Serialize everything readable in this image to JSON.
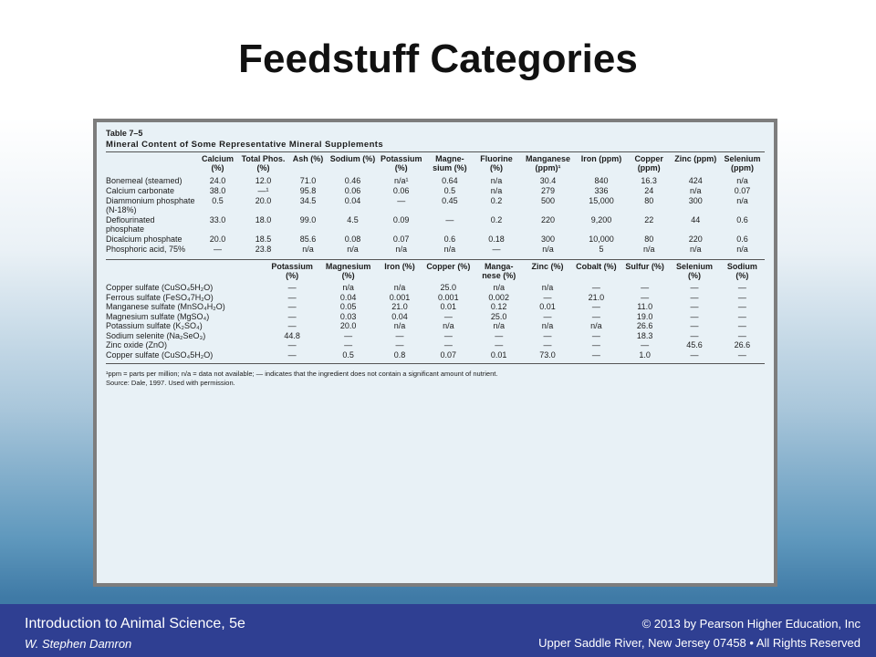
{
  "slide": {
    "title": "Feedstuff Categories"
  },
  "table": {
    "number": "Table 7–5",
    "title": "Mineral Content of Some Representative Mineral Supplements",
    "part1": {
      "headers": [
        "",
        "Calcium (%)",
        "Total Phos. (%)",
        "Ash (%)",
        "Sodium (%)",
        "Potassium (%)",
        "Magne- sium (%)",
        "Fluorine (%)",
        "Manganese (ppm)¹",
        "Iron (ppm)",
        "Copper (ppm)",
        "Zinc (ppm)",
        "Selenium (ppm)"
      ],
      "rows": [
        {
          "name": "Bonemeal (steamed)",
          "values": [
            "24.0",
            "12.0",
            "71.0",
            "0.46",
            "n/a¹",
            "0.64",
            "n/a",
            "30.4",
            "840",
            "16.3",
            "424",
            "n/a"
          ]
        },
        {
          "name": "Calcium carbonate",
          "values": [
            "38.0",
            "—¹",
            "95.8",
            "0.06",
            "0.06",
            "0.5",
            "n/a",
            "279",
            "336",
            "24",
            "n/a",
            "0.07"
          ]
        },
        {
          "name": "Diammonium phosphate (N-18%)",
          "values": [
            "0.5",
            "20.0",
            "34.5",
            "0.04",
            "—",
            "0.45",
            "0.2",
            "500",
            "15,000",
            "80",
            "300",
            "n/a"
          ]
        },
        {
          "name": "Deflourinated phosphate",
          "values": [
            "33.0",
            "18.0",
            "99.0",
            "4.5",
            "0.09",
            "—",
            "0.2",
            "220",
            "9,200",
            "22",
            "44",
            "0.6"
          ]
        },
        {
          "name": "Dicalcium phosphate",
          "values": [
            "20.0",
            "18.5",
            "85.6",
            "0.08",
            "0.07",
            "0.6",
            "0.18",
            "300",
            "10,000",
            "80",
            "220",
            "0.6"
          ]
        },
        {
          "name": "Phosphoric acid, 75%",
          "values": [
            "—",
            "23.8",
            "n/a",
            "n/a",
            "n/a",
            "n/a",
            "—",
            "n/a",
            "5",
            "n/a",
            "n/a",
            "n/a"
          ]
        }
      ]
    },
    "part2": {
      "headers": [
        "",
        "Potassium (%)",
        "Magnesium (%)",
        "Iron (%)",
        "Copper (%)",
        "Manga- nese (%)",
        "Zinc (%)",
        "Cobalt (%)",
        "Sulfur (%)",
        "Selenium (%)",
        "Sodium (%)"
      ],
      "rows": [
        {
          "name": "Copper sulfate (CuSO₄5H₂O)",
          "values": [
            "—",
            "n/a",
            "n/a",
            "25.0",
            "n/a",
            "n/a",
            "—",
            "—",
            "—",
            "—"
          ]
        },
        {
          "name": "Ferrous sulfate (FeSO₄7H₂O)",
          "values": [
            "—",
            "0.04",
            "0.001",
            "0.001",
            "0.002",
            "—",
            "21.0",
            "—",
            "—",
            "—"
          ]
        },
        {
          "name": "Manganese sulfate (MnSO₄H₂O)",
          "values": [
            "—",
            "0.05",
            "21.0",
            "0.01",
            "0.12",
            "0.01",
            "—",
            "11.0",
            "—",
            "—"
          ]
        },
        {
          "name": "Magnesium sulfate (MgSO₄)",
          "values": [
            "—",
            "0.03",
            "0.04",
            "—",
            "25.0",
            "—",
            "—",
            "19.0",
            "—",
            "—"
          ]
        },
        {
          "name": "Potassium sulfate (K₂SO₄)",
          "values": [
            "—",
            "20.0",
            "n/a",
            "n/a",
            "n/a",
            "n/a",
            "n/a",
            "26.6",
            "—",
            "—"
          ]
        },
        {
          "name": "Sodium selenite (Na₂SeO₃)",
          "values": [
            "44.8",
            "—",
            "—",
            "—",
            "—",
            "—",
            "—",
            "18.3",
            "—",
            "—"
          ]
        },
        {
          "name": "Zinc oxide (ZnO)",
          "values": [
            "—",
            "—",
            "—",
            "—",
            "—",
            "—",
            "—",
            "—",
            "45.6",
            "26.6"
          ]
        },
        {
          "name": "Copper sulfate (CuSO₄5H₂O)",
          "values": [
            "—",
            "0.5",
            "0.8",
            "0.07",
            "0.01",
            "73.0",
            "—",
            "1.0",
            "—",
            "—"
          ]
        }
      ]
    },
    "footnote": "¹ppm = parts per million; n/a = data not available; — indicates that the ingredient does not contain a significant amount of nutrient.",
    "source": "Source: Dale, 1997. Used with permission."
  },
  "footer": {
    "book": "Introduction to Animal Science, 5e",
    "author": "W. Stephen Damron",
    "copyright": "© 2013 by Pearson Higher Education, Inc",
    "address": "Upper Saddle River, New Jersey 07458 • All Rights Reserved"
  },
  "colors": {
    "footer_bar": "#2f3f92",
    "table_background": "#e8f1f6",
    "table_border": "#7d7d7d"
  }
}
